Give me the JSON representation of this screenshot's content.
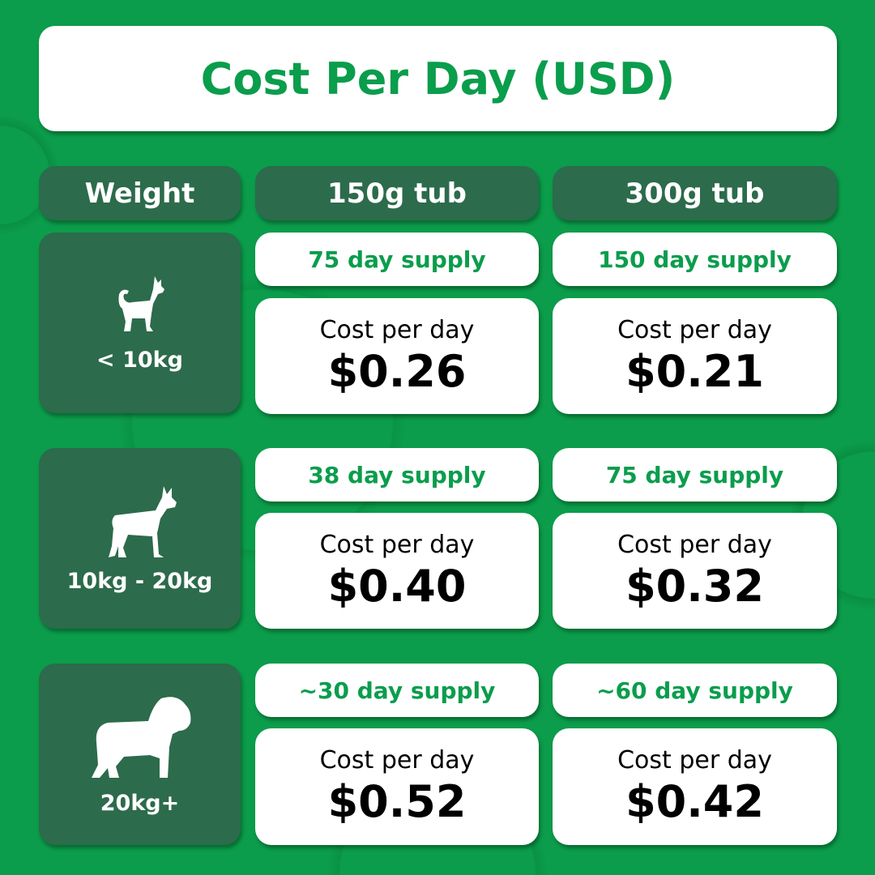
{
  "title": "Cost Per Day (USD)",
  "headers": {
    "weight": "Weight",
    "tub150": "150g tub",
    "tub300": "300g tub"
  },
  "colors": {
    "background": "#0b9d4b",
    "dark_panel": "#2c6b4b",
    "accent_text": "#0a9d4c"
  },
  "rows": [
    {
      "weight": "< 10kg",
      "icon": "small-dog-icon",
      "tub150": {
        "supply": "75 day supply",
        "cost_label": "Cost per day",
        "cost": "$0.26"
      },
      "tub300": {
        "supply": "150 day supply",
        "cost_label": "Cost per day",
        "cost": "$0.21"
      }
    },
    {
      "weight": "10kg - 20kg",
      "icon": "medium-dog-icon",
      "tub150": {
        "supply": "38 day supply",
        "cost_label": "Cost per day",
        "cost": "$0.40"
      },
      "tub300": {
        "supply": "75 day supply",
        "cost_label": "Cost per day",
        "cost": "$0.32"
      }
    },
    {
      "weight": "20kg+",
      "icon": "large-dog-icon",
      "tub150": {
        "supply": "~30 day supply",
        "cost_label": "Cost per day",
        "cost": "$0.52"
      },
      "tub300": {
        "supply": "~60 day supply",
        "cost_label": "Cost per day",
        "cost": "$0.42"
      }
    }
  ]
}
